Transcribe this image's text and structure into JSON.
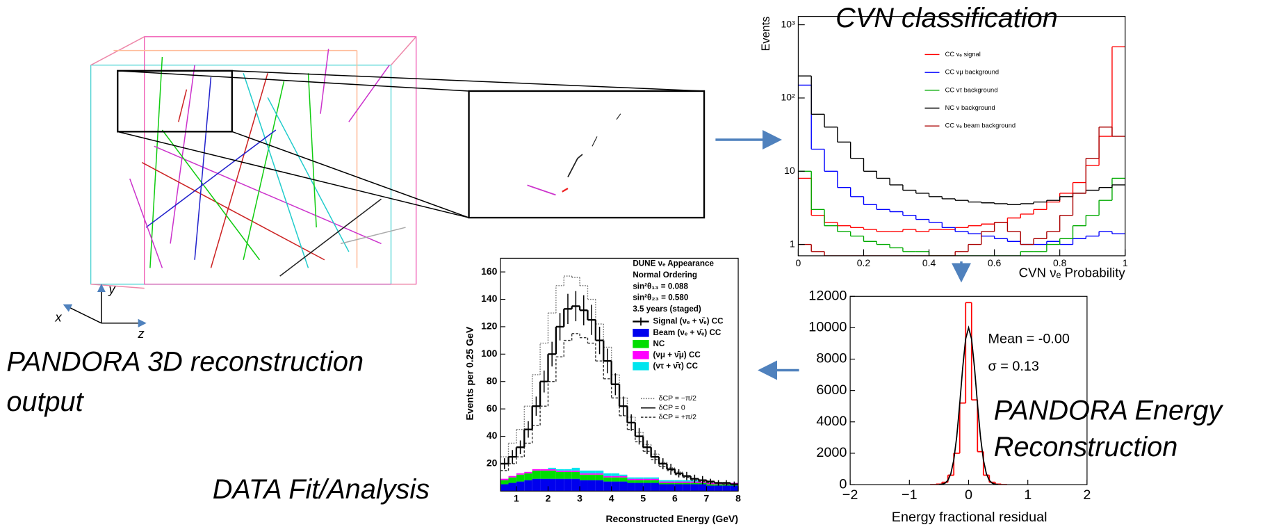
{
  "event_display": {
    "caption": [
      "PANDORA 3D reconstruction",
      "output"
    ],
    "axes": [
      "x",
      "y",
      "z"
    ]
  },
  "chart_data": [
    {
      "type": "histogram",
      "title": "CVN classification",
      "x_label": "CVN νₑ Probability",
      "y_label": "Events",
      "log_y": true,
      "xlim": [
        0,
        1
      ],
      "ylim": [
        0.7,
        1300
      ],
      "xticks": [
        0,
        0.2,
        0.4,
        0.6,
        0.8,
        1
      ],
      "yticks": [
        1,
        10,
        {
          "value": 100,
          "label": "10²"
        },
        {
          "value": 1000,
          "label": "10³"
        }
      ],
      "bins": [
        0,
        0.04,
        0.08,
        0.12,
        0.16,
        0.2,
        0.24,
        0.28,
        0.32,
        0.36,
        0.4,
        0.44,
        0.48,
        0.52,
        0.56,
        0.6,
        0.64,
        0.68,
        0.72,
        0.76,
        0.8,
        0.84,
        0.88,
        0.92,
        0.96,
        1
      ],
      "series": [
        {
          "name": "CC νₑ signal",
          "color": "#ff0000",
          "values": [
            8,
            2.5,
            2,
            1.8,
            1.7,
            1.6,
            1.5,
            1.5,
            1.6,
            1.5,
            1.6,
            1.6,
            1.7,
            1.8,
            1.9,
            2,
            2.3,
            2.6,
            3,
            3.8,
            5,
            7,
            12,
            30,
            500
          ]
        },
        {
          "name": "CC νμ background",
          "color": "#0000ff",
          "values": [
            150,
            20,
            10,
            6,
            4.5,
            3.5,
            3,
            2.8,
            2.5,
            2.2,
            2,
            1.7,
            1.5,
            1.4,
            1.3,
            1.2,
            1.1,
            1,
            1,
            1.1,
            1,
            1.2,
            1.3,
            1.5,
            1.4
          ]
        },
        {
          "name": "CC ντ background",
          "color": "#00aa00",
          "values": [
            10,
            3,
            1.8,
            1.5,
            1.3,
            1.1,
            1,
            0.9,
            0.8,
            0.8,
            0.7,
            0.7,
            0.7,
            0.7,
            0.7,
            0.7,
            0.7,
            0.8,
            0.8,
            1,
            1.2,
            1.8,
            2.5,
            4,
            8
          ]
        },
        {
          "name": "NC ν background",
          "color": "#000000",
          "values": [
            200,
            60,
            40,
            25,
            15,
            10,
            8,
            6.5,
            5.5,
            5,
            4.5,
            4.2,
            4,
            3.8,
            3.7,
            3.6,
            3.5,
            3.6,
            3.8,
            4,
            4.5,
            5,
            5.5,
            6,
            6.5
          ]
        },
        {
          "name": "CC νₑ beam background",
          "color": "#aa0000",
          "values": [
            1,
            0.8,
            0.7,
            0.7,
            0.7,
            0.7,
            0.7,
            0.7,
            0.7,
            0.7,
            0.7,
            0.7,
            0.8,
            1,
            1.5,
            2,
            1.5,
            1,
            1.2,
            1.5,
            2.5,
            5,
            15,
            40,
            30
          ]
        }
      ]
    },
    {
      "type": "histogram",
      "title": [
        "PANDORA Energy",
        "Reconstruction"
      ],
      "x_label": "Energy fractional residual",
      "annotations": [
        "Mean = -0.00",
        "σ = 0.13"
      ],
      "xlim": [
        -2,
        2
      ],
      "ylim": [
        0,
        12000
      ],
      "xticks": [
        {
          "value": -2,
          "label": "−2"
        },
        {
          "value": -1,
          "label": "−1"
        },
        0,
        1,
        2
      ],
      "yticks": [
        0,
        2000,
        4000,
        6000,
        8000,
        10000,
        12000
      ],
      "bins": [
        -0.65,
        -0.55,
        -0.45,
        -0.35,
        -0.25,
        -0.15,
        -0.05,
        0.05,
        0.15,
        0.25,
        0.35,
        0.45,
        0.55,
        0.65
      ],
      "values": [
        0,
        30,
        150,
        600,
        2000,
        5200,
        11600,
        5400,
        2100,
        600,
        150,
        30,
        0
      ],
      "color": "#ff0000",
      "curve": {
        "color": "#000000",
        "x": [
          -0.5,
          -0.45,
          -0.4,
          -0.35,
          -0.3,
          -0.25,
          -0.2,
          -0.15,
          -0.1,
          -0.05,
          0,
          0.05,
          0.1,
          0.15,
          0.2,
          0.25,
          0.3,
          0.35,
          0.4,
          0.45,
          0.5
        ],
        "values": [
          6,
          25,
          88,
          267,
          697,
          1574,
          3063,
          5140,
          7438,
          9287,
          10000,
          9287,
          7438,
          5140,
          3063,
          1574,
          697,
          267,
          88,
          25,
          6
        ]
      }
    },
    {
      "type": "stacked-histogram",
      "title": "DATA Fit/Analysis",
      "x_label": "Reconstructed Energy (GeV)",
      "y_label": "Events per 0.25 GeV",
      "annotations": [
        "DUNE νₑ Appearance",
        "Normal Ordering",
        "sin²θ₁₃ = 0.088",
        "sin²θ₂₃ = 0.580",
        "3.5 years (staged)"
      ],
      "xlim": [
        0.5,
        8
      ],
      "ylim": [
        0,
        170
      ],
      "xticks": [
        1,
        2,
        3,
        4,
        5,
        6,
        7,
        8
      ],
      "yticks": [
        20,
        40,
        60,
        80,
        100,
        120,
        140,
        160
      ],
      "bins": [
        0.5,
        0.75,
        1,
        1.25,
        1.5,
        1.75,
        2,
        2.25,
        2.5,
        2.75,
        3,
        3.25,
        3.5,
        3.75,
        4,
        4.25,
        4.5,
        4.75,
        5,
        5.25,
        5.5,
        5.75,
        6,
        6.25,
        6.5,
        6.75,
        7,
        7.25,
        7.5,
        7.75,
        8
      ],
      "series": [
        {
          "name": "Signal (νₑ + ν̄ₑ) CC",
          "color": "#000000",
          "values": [
            20,
            25,
            32,
            45,
            62,
            80,
            100,
            120,
            133,
            135,
            132,
            125,
            110,
            95,
            78,
            62,
            50,
            40,
            32,
            25,
            20,
            16,
            13,
            11,
            9,
            8,
            7,
            6,
            6,
            5
          ],
          "errors": [
            4,
            5,
            5,
            6,
            7,
            8,
            9,
            10,
            11,
            11,
            11,
            11,
            10,
            9,
            8,
            7,
            6,
            6,
            5,
            5,
            4,
            4,
            3,
            3,
            3,
            3,
            2,
            2,
            2,
            2
          ]
        }
      ],
      "stacked": [
        {
          "name": "Beam (νₑ + ν̄ₑ) CC",
          "color": "#0000ee",
          "values": [
            5,
            6,
            7,
            8,
            9,
            9,
            9,
            9,
            9,
            9,
            8,
            8,
            8,
            7,
            7,
            7,
            6,
            6,
            6,
            6,
            5,
            5,
            5,
            5,
            5,
            5,
            4,
            4,
            4,
            4
          ]
        },
        {
          "name": "NC",
          "color": "#00dd00",
          "values": [
            3,
            4,
            5,
            5,
            6,
            6,
            6,
            5,
            5,
            5,
            4,
            4,
            4,
            3,
            3,
            3,
            2,
            2,
            2,
            2,
            1,
            1,
            1,
            1,
            1,
            1,
            1,
            1,
            1,
            1
          ]
        },
        {
          "name": "(νμ + ν̄μ) CC",
          "color": "#ff00ff",
          "values": [
            1,
            1,
            1,
            1,
            1,
            1,
            1,
            1,
            1,
            1,
            1,
            1,
            1,
            1,
            1,
            1,
            1,
            1,
            1,
            1,
            1,
            1,
            1,
            1,
            1,
            1,
            1,
            1,
            1,
            1
          ]
        },
        {
          "name": "(ντ + ν̄τ) CC",
          "color": "#00e5ee",
          "values": [
            0,
            0,
            0,
            0,
            0,
            0,
            1,
            1,
            1,
            2,
            2,
            2,
            2,
            2,
            2,
            1,
            1,
            1,
            1,
            1,
            1,
            1,
            1,
            1,
            1,
            0,
            0,
            0,
            0,
            0
          ]
        }
      ],
      "variants": [
        {
          "name": "δCP = −π/2",
          "color": "#777777",
          "dash": "1.5,1.5",
          "values": [
            25,
            35,
            45,
            62,
            85,
            108,
            130,
            150,
            157,
            156,
            150,
            140,
            122,
            105,
            85,
            68,
            54,
            43,
            34,
            27,
            21,
            17,
            14,
            11,
            9,
            8,
            7,
            6,
            6,
            5
          ]
        },
        {
          "name": "δCP = 0",
          "color": "#000000",
          "dash": "none"
        },
        {
          "name": "δCP = +π/2",
          "color": "#333333",
          "dash": "3,2",
          "values": [
            15,
            20,
            25,
            35,
            48,
            62,
            80,
            98,
            110,
            115,
            112,
            108,
            95,
            82,
            68,
            55,
            45,
            36,
            29,
            23,
            18,
            15,
            12,
            10,
            8,
            7,
            6,
            6,
            5,
            5
          ]
        }
      ]
    }
  ]
}
